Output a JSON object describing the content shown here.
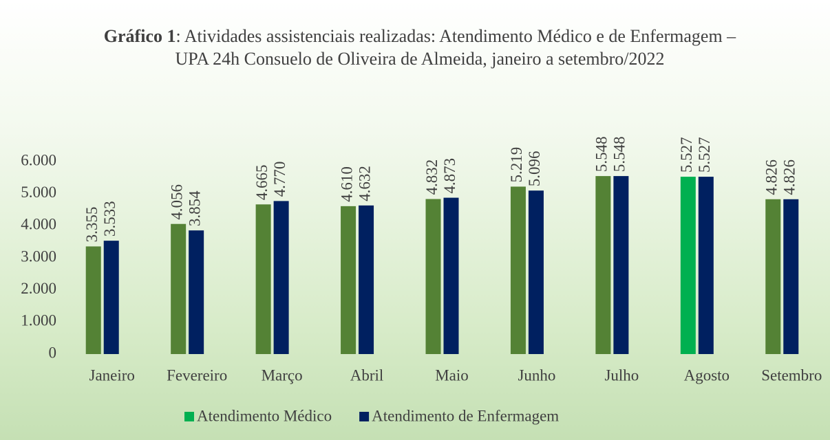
{
  "chart_data": {
    "type": "bar",
    "title_label": "Gráfico 1",
    "title": ": Atividades assistenciais realizadas: Atendimento Médico e de Enfermagem – UPA 24h Consuelo de Oliveira de Almeida, janeiro a setembro/2022",
    "categories": [
      "Janeiro",
      "Fevereiro",
      "Março",
      "Abril",
      "Maio",
      "Junho",
      "Julho",
      "Agosto",
      "Setembro"
    ],
    "series": [
      {
        "name": "Atendimento Médico",
        "color": "#00b050",
        "colors": [
          "#548235",
          "#548235",
          "#548235",
          "#548235",
          "#548235",
          "#548235",
          "#548235",
          "#00b050",
          "#548235"
        ],
        "values": [
          3355,
          4056,
          4665,
          4610,
          4832,
          5219,
          5548,
          5527,
          4826
        ],
        "value_labels": [
          "3.355",
          "4.056",
          "4.665",
          "4.610",
          "4.832",
          "5.219",
          "5.548",
          "5.527",
          "4.826"
        ]
      },
      {
        "name": "Atendimento de Enfermagem",
        "color": "#002060",
        "values": [
          3533,
          3854,
          4770,
          4632,
          4873,
          5096,
          5548,
          5527,
          4826
        ],
        "value_labels": [
          "3.533",
          "3.854",
          "4.770",
          "4.632",
          "4.873",
          "5.096",
          "5.548",
          "5.527",
          "4.826"
        ]
      }
    ],
    "ylim": [
      0,
      6000
    ],
    "yticks": [
      {
        "value": 0,
        "label": "0"
      },
      {
        "value": 1000,
        "label": "1.000"
      },
      {
        "value": 2000,
        "label": "2.000"
      },
      {
        "value": 3000,
        "label": "3.000"
      },
      {
        "value": 4000,
        "label": "4.000"
      },
      {
        "value": 5000,
        "label": "5.000"
      },
      {
        "value": 6000,
        "label": "6.000"
      }
    ],
    "grid": false,
    "legend": "bottom"
  }
}
